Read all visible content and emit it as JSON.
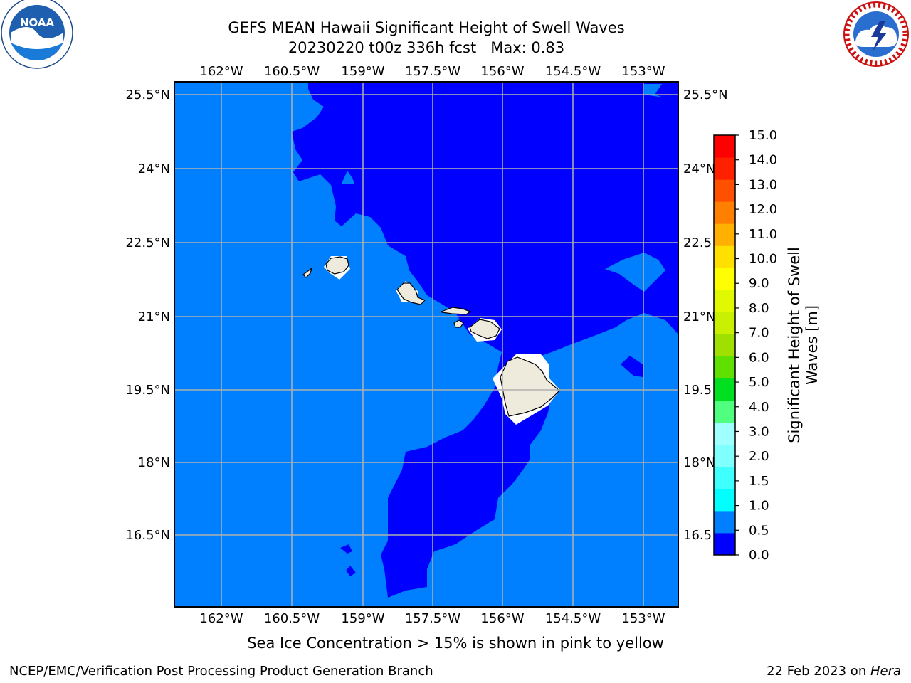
{
  "title_line1": "GEFS MEAN Hawaii Significant Height of Swell Waves",
  "title_line2": "20230220 t00z 336h fcst   Max: 0.83",
  "logos": {
    "left": "noaa-logo",
    "left_text": "NOAA",
    "right": "national-weather-service-logo",
    "right_text": "NATIONAL WEATHER SERVICE"
  },
  "lon_labels": [
    "162°W",
    "160.5°W",
    "159°W",
    "157.5°W",
    "156°W",
    "154.5°W",
    "153°W"
  ],
  "lat_labels_left": [
    "25.5°N",
    "24°N",
    "22.5°N",
    "21°N",
    "19.5°N",
    "18°N",
    "16.5°N"
  ],
  "lat_labels_right": [
    "25.5°N",
    "24°N",
    "22.5",
    "21°N",
    "19.5",
    "18°N",
    "16.5"
  ],
  "colorbar": {
    "label": "Significant Height of Swell\nWaves [m]",
    "ticks": [
      "0.0",
      "0.5",
      "1.0",
      "1.5",
      "2.0",
      "3.0",
      "4.0",
      "5.0",
      "6.0",
      "7.0",
      "8.0",
      "9.0",
      "10.0",
      "11.0",
      "12.0",
      "13.0",
      "14.0",
      "15.0"
    ],
    "colors": [
      "#0000ff",
      "#0080ff",
      "#00ffff",
      "#40ffff",
      "#80ffff",
      "#a0ffff",
      "#50ff80",
      "#00e020",
      "#60e000",
      "#a0e000",
      "#c8f000",
      "#e0f800",
      "#ffff00",
      "#ffe000",
      "#ffb000",
      "#ff8000",
      "#ff5000",
      "#ff2000",
      "#ff0000"
    ]
  },
  "map_colors": {
    "low": "#0000ff",
    "mid": "#0080ff",
    "land": "#eeebdc",
    "grid": "#b0b0b0"
  },
  "ice_note": "Sea Ice Concentration > 15% is shown in pink to yellow",
  "footer_left": "NCEP/EMC/Verification Post Processing Product Generation Branch",
  "footer_right_prefix": "22 Feb 2023 on ",
  "footer_right_machine": "Hera"
}
